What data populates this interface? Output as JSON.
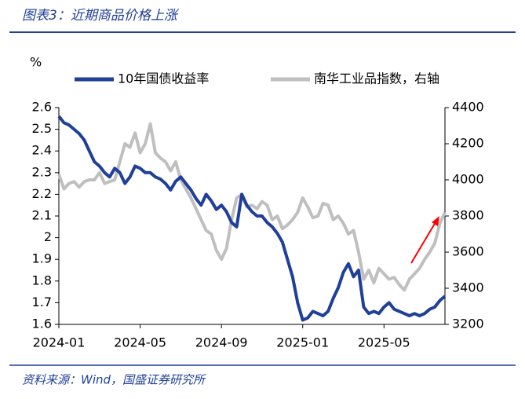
{
  "chart_data": {
    "type": "line",
    "title": "图表3：近期商品价格上涨",
    "source": "资料来源：Wind，国盛证券研究所",
    "y_label": "%",
    "categories": [
      "2024-01",
      null,
      null,
      null,
      null,
      null,
      null,
      null,
      null,
      null,
      null,
      null,
      null,
      null,
      null,
      null,
      "2024-05",
      null,
      null,
      null,
      null,
      null,
      null,
      null,
      null,
      null,
      null,
      null,
      null,
      null,
      null,
      null,
      "2024-09",
      null,
      null,
      null,
      null,
      null,
      null,
      null,
      null,
      null,
      null,
      null,
      null,
      null,
      null,
      null,
      "2025-01",
      null,
      null,
      null,
      null,
      null,
      null,
      null,
      null,
      null,
      null,
      null,
      null,
      null,
      null,
      null,
      "2025-05",
      null,
      null,
      null,
      null,
      null,
      null,
      null,
      null,
      null,
      null,
      null,
      null
    ],
    "series": [
      {
        "name": "10年国债收益率",
        "color": "#1f3f99",
        "axis": "y",
        "values": [
          2.56,
          2.53,
          2.52,
          2.5,
          2.48,
          2.45,
          2.4,
          2.35,
          2.33,
          2.3,
          2.28,
          2.32,
          2.3,
          2.25,
          2.28,
          2.33,
          2.32,
          2.3,
          2.3,
          2.28,
          2.27,
          2.25,
          2.22,
          2.26,
          2.28,
          2.25,
          2.22,
          2.18,
          2.15,
          2.2,
          2.17,
          2.13,
          2.15,
          2.12,
          2.07,
          2.05,
          2.2,
          2.15,
          2.12,
          2.1,
          2.1,
          2.07,
          2.05,
          2.02,
          1.98,
          1.9,
          1.82,
          1.7,
          1.62,
          1.63,
          1.66,
          1.65,
          1.64,
          1.66,
          1.72,
          1.77,
          1.84,
          1.88,
          1.82,
          1.85,
          1.68,
          1.65,
          1.66,
          1.65,
          1.68,
          1.7,
          1.67,
          1.66,
          1.65,
          1.64,
          1.65,
          1.64,
          1.65,
          1.67,
          1.68,
          1.71,
          1.73
        ]
      },
      {
        "name": "南华工业品指数，右轴",
        "color": "#bfbfbf",
        "axis": "y2",
        "values": [
          4030,
          3950,
          3980,
          3990,
          3960,
          3990,
          4000,
          4000,
          4040,
          3980,
          3990,
          4000,
          4100,
          4200,
          4180,
          4260,
          4150,
          4200,
          4310,
          4150,
          4120,
          4100,
          4050,
          4100,
          4000,
          3950,
          3900,
          3840,
          3780,
          3720,
          3700,
          3610,
          3560,
          3620,
          3780,
          3900,
          3920,
          3850,
          3860,
          3840,
          3880,
          3860,
          3780,
          3800,
          3730,
          3750,
          3780,
          3820,
          3900,
          3850,
          3790,
          3800,
          3870,
          3860,
          3780,
          3800,
          3760,
          3700,
          3720,
          3600,
          3450,
          3500,
          3430,
          3510,
          3480,
          3450,
          3460,
          3420,
          3390,
          3450,
          3480,
          3510,
          3560,
          3600,
          3650,
          3760,
          3820
        ]
      }
    ],
    "ylim": [
      1.6,
      2.6
    ],
    "yticks": [
      1.6,
      1.7,
      1.8,
      1.9,
      2,
      2.1,
      2.2,
      2.3,
      2.4,
      2.5,
      2.6
    ],
    "y2lim": [
      3200,
      4400
    ],
    "y2ticks": [
      3200,
      3400,
      3600,
      3800,
      4000,
      4200,
      4400
    ],
    "legend": "top"
  }
}
